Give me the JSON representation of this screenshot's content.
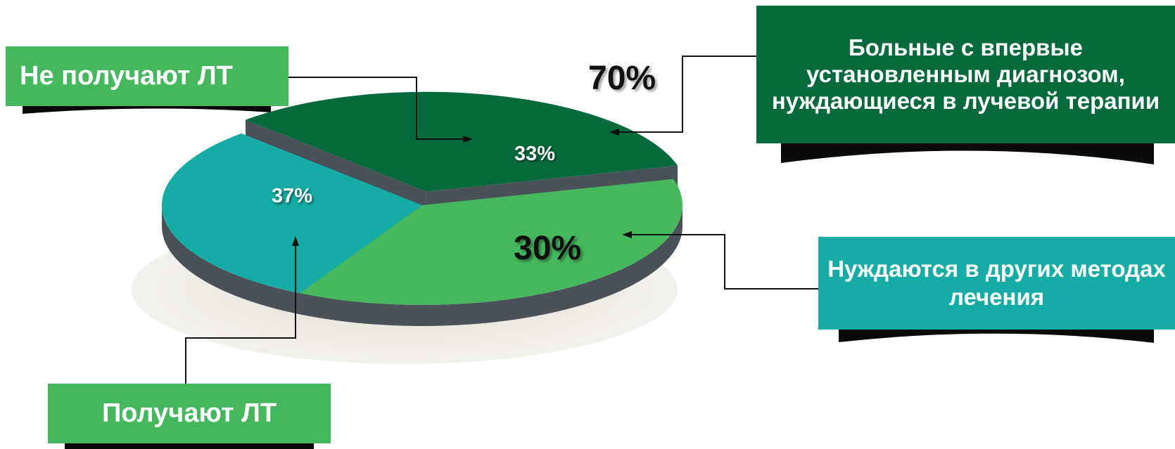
{
  "chart_data": {
    "type": "pie",
    "title": "",
    "slices": [
      {
        "label": "Не получают ЛТ",
        "value": 33,
        "value_label": "33%",
        "color": "#046a3b"
      },
      {
        "label": "Получают ЛТ",
        "value": 37,
        "value_label": "37%",
        "color": "#45b75d"
      },
      {
        "label": "Нуждаются в других методах лечения",
        "value": 30,
        "value_label": "30%",
        "color": "#14aca4"
      }
    ],
    "group_totals": [
      {
        "label": "Больные с впервые установленным диагнозом, нуждающиеся в лучевой терапии",
        "value": 70,
        "value_label": "70%"
      }
    ],
    "legend": "none"
  },
  "callouts": {
    "no_rt": "Не получают ЛТ",
    "newly_diagnosed": "Больные с впервые установленным диагнозом, нуждающиеся в лучевой терапии",
    "other_methods": "Нуждаются в других методах лечения",
    "rt": "Получают ЛТ"
  },
  "colors": {
    "dark_green": "#046a3b",
    "light_green": "#45b75d",
    "teal": "#14aca4",
    "side_gray": "#4a5158",
    "shadow": "#ece9e2"
  }
}
